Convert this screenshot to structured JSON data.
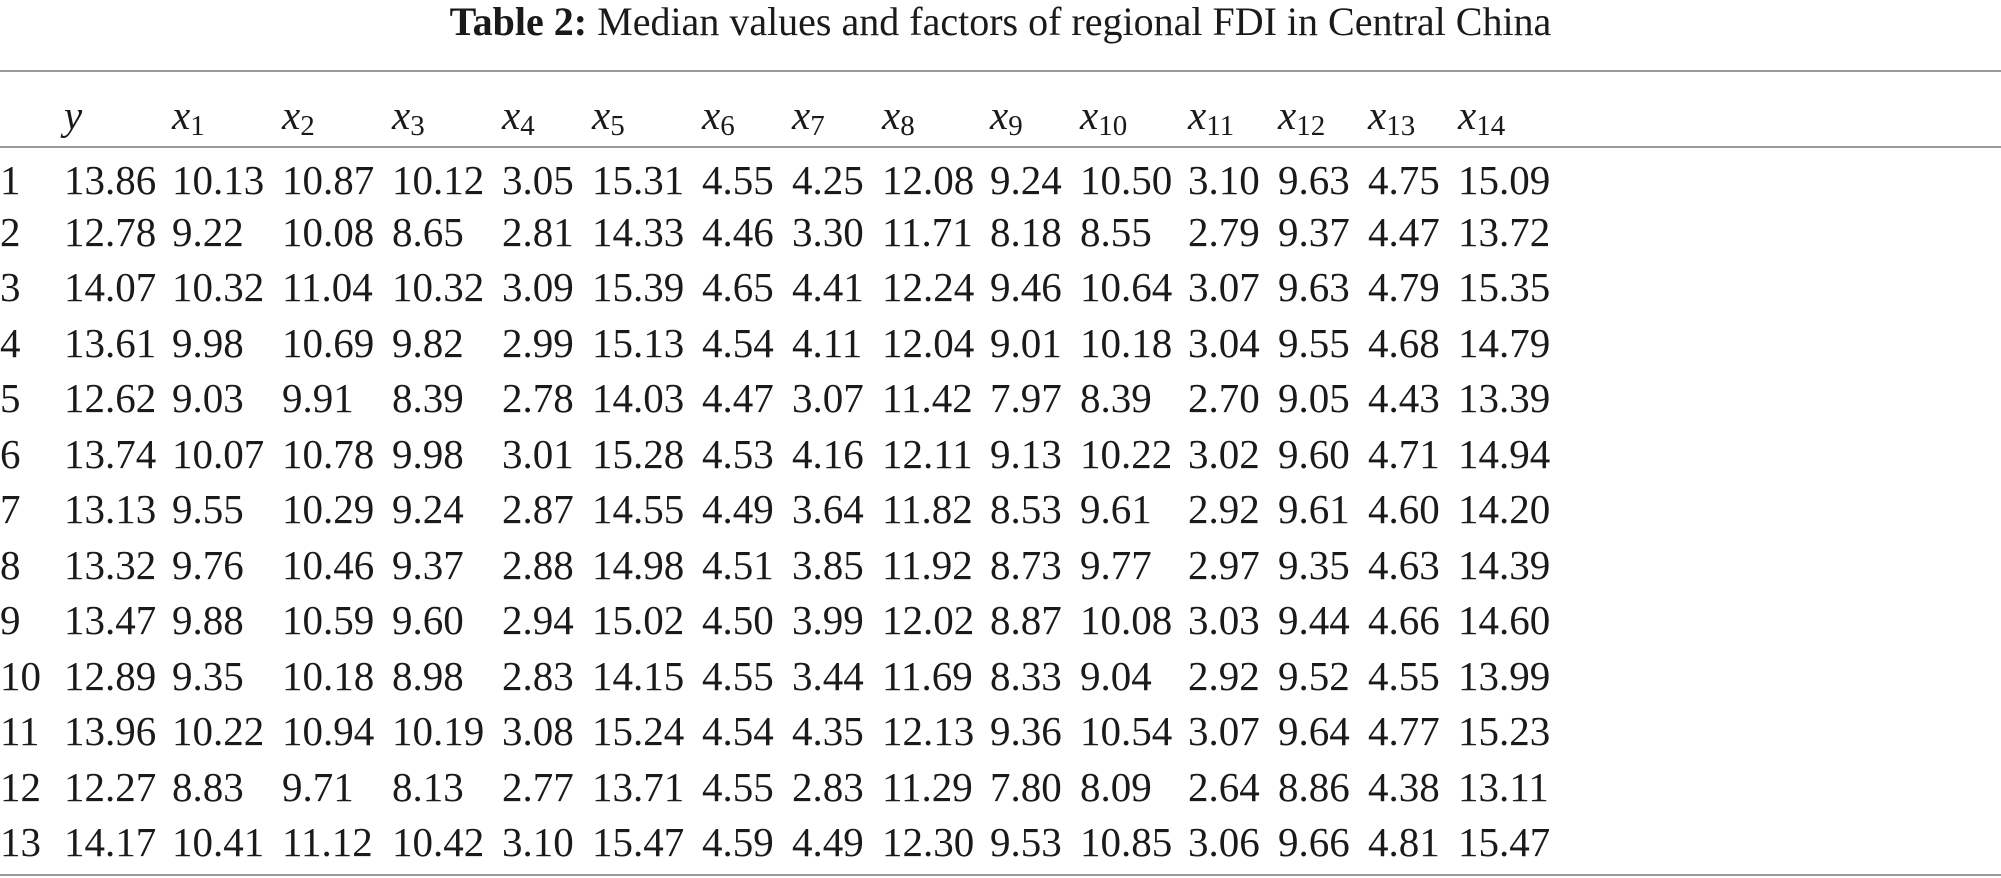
{
  "caption": {
    "label": "Table 2:",
    "text": "Median values and factors of regional FDI in Central China"
  },
  "table": {
    "columns": [
      {
        "base": "",
        "sub": ""
      },
      {
        "base": "y",
        "sub": ""
      },
      {
        "base": "x",
        "sub": "1"
      },
      {
        "base": "x",
        "sub": "2"
      },
      {
        "base": "x",
        "sub": "3"
      },
      {
        "base": "x",
        "sub": "4"
      },
      {
        "base": "x",
        "sub": "5"
      },
      {
        "base": "x",
        "sub": "6"
      },
      {
        "base": "x",
        "sub": "7"
      },
      {
        "base": "x",
        "sub": "8"
      },
      {
        "base": "x",
        "sub": "9"
      },
      {
        "base": "x",
        "sub": "10"
      },
      {
        "base": "x",
        "sub": "11"
      },
      {
        "base": "x",
        "sub": "12"
      },
      {
        "base": "x",
        "sub": "13"
      },
      {
        "base": "x",
        "sub": "14"
      }
    ],
    "rows": [
      [
        "1",
        "13.86",
        "10.13",
        "10.87",
        "10.12",
        "3.05",
        "15.31",
        "4.55",
        "4.25",
        "12.08",
        "9.24",
        "10.50",
        "3.10",
        "9.63",
        "4.75",
        "15.09"
      ],
      [
        "2",
        "12.78",
        "9.22",
        "10.08",
        "8.65",
        "2.81",
        "14.33",
        "4.46",
        "3.30",
        "11.71",
        "8.18",
        "8.55",
        "2.79",
        "9.37",
        "4.47",
        "13.72"
      ],
      [
        "3",
        "14.07",
        "10.32",
        "11.04",
        "10.32",
        "3.09",
        "15.39",
        "4.65",
        "4.41",
        "12.24",
        "9.46",
        "10.64",
        "3.07",
        "9.63",
        "4.79",
        "15.35"
      ],
      [
        "4",
        "13.61",
        "9.98",
        "10.69",
        "9.82",
        "2.99",
        "15.13",
        "4.54",
        "4.11",
        "12.04",
        "9.01",
        "10.18",
        "3.04",
        "9.55",
        "4.68",
        "14.79"
      ],
      [
        "5",
        "12.62",
        "9.03",
        "9.91",
        "8.39",
        "2.78",
        "14.03",
        "4.47",
        "3.07",
        "11.42",
        "7.97",
        "8.39",
        "2.70",
        "9.05",
        "4.43",
        "13.39"
      ],
      [
        "6",
        "13.74",
        "10.07",
        "10.78",
        "9.98",
        "3.01",
        "15.28",
        "4.53",
        "4.16",
        "12.11",
        "9.13",
        "10.22",
        "3.02",
        "9.60",
        "4.71",
        "14.94"
      ],
      [
        "7",
        "13.13",
        "9.55",
        "10.29",
        "9.24",
        "2.87",
        "14.55",
        "4.49",
        "3.64",
        "11.82",
        "8.53",
        "9.61",
        "2.92",
        "9.61",
        "4.60",
        "14.20"
      ],
      [
        "8",
        "13.32",
        "9.76",
        "10.46",
        "9.37",
        "2.88",
        "14.98",
        "4.51",
        "3.85",
        "11.92",
        "8.73",
        "9.77",
        "2.97",
        "9.35",
        "4.63",
        "14.39"
      ],
      [
        "9",
        "13.47",
        "9.88",
        "10.59",
        "9.60",
        "2.94",
        "15.02",
        "4.50",
        "3.99",
        "12.02",
        "8.87",
        "10.08",
        "3.03",
        "9.44",
        "4.66",
        "14.60"
      ],
      [
        "10",
        "12.89",
        "9.35",
        "10.18",
        "8.98",
        "2.83",
        "14.15",
        "4.55",
        "3.44",
        "11.69",
        "8.33",
        "9.04",
        "2.92",
        "9.52",
        "4.55",
        "13.99"
      ],
      [
        "11",
        "13.96",
        "10.22",
        "10.94",
        "10.19",
        "3.08",
        "15.24",
        "4.54",
        "4.35",
        "12.13",
        "9.36",
        "10.54",
        "3.07",
        "9.64",
        "4.77",
        "15.23"
      ],
      [
        "12",
        "12.27",
        "8.83",
        "9.71",
        "8.13",
        "2.77",
        "13.71",
        "4.55",
        "2.83",
        "11.29",
        "7.80",
        "8.09",
        "2.64",
        "8.86",
        "4.38",
        "13.11"
      ],
      [
        "13",
        "14.17",
        "10.41",
        "11.12",
        "10.42",
        "3.10",
        "15.47",
        "4.59",
        "4.49",
        "12.30",
        "9.53",
        "10.85",
        "3.06",
        "9.66",
        "4.81",
        "15.47"
      ]
    ]
  }
}
